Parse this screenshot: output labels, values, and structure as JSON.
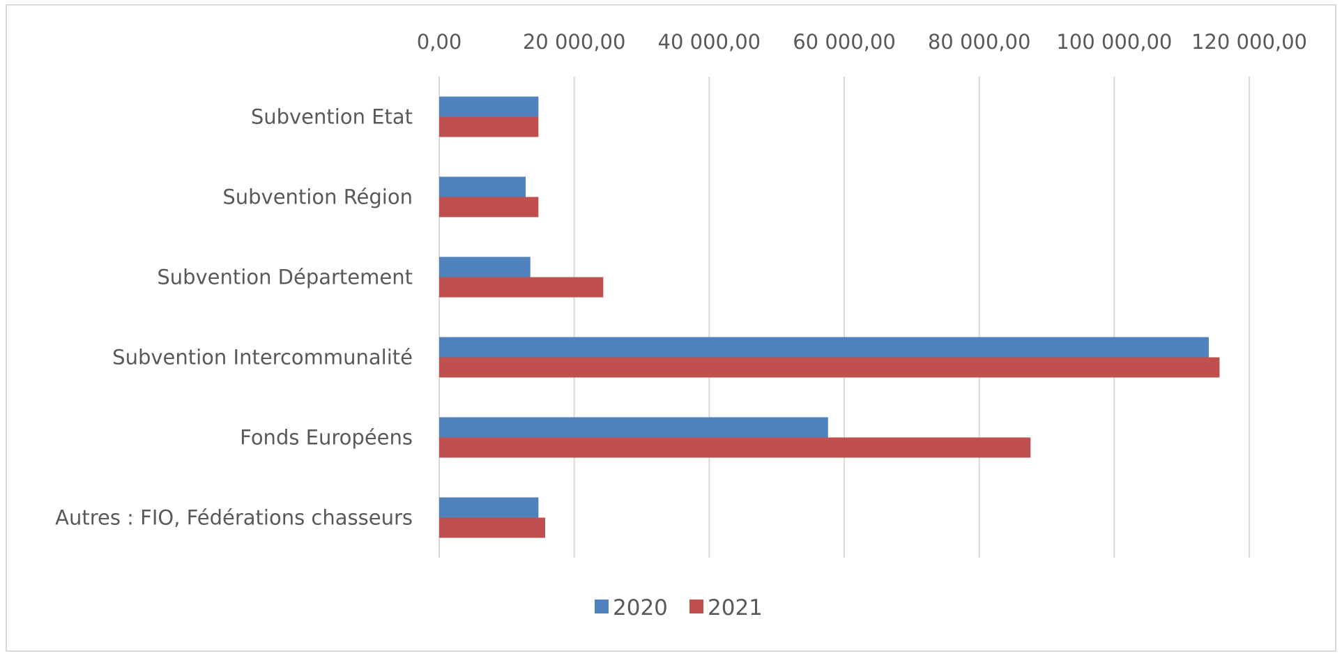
{
  "chart_data": {
    "type": "bar",
    "orientation": "horizontal",
    "title": "",
    "xlabel": "",
    "ylabel": "",
    "xlim": [
      0,
      120000
    ],
    "x_ticks": [
      0,
      20000,
      40000,
      60000,
      80000,
      100000,
      120000
    ],
    "x_tick_labels": [
      "0,00",
      "20 000,00",
      "40 000,00",
      "60 000,00",
      "80 000,00",
      "100 000,00",
      "120 000,00"
    ],
    "x_axis_position": "top",
    "grid": "vertical",
    "legend": "bottom",
    "categories": [
      "Subvention Etat",
      "Subvention Région",
      "Subvention Département",
      "Subvention Intercommunalité",
      "Fonds Européens",
      "Autres : FIO, Fédérations chasseurs"
    ],
    "series": [
      {
        "name": "2020",
        "color": "#4f81bd",
        "values": [
          14700,
          12800,
          13500,
          114000,
          57600,
          14700
        ]
      },
      {
        "name": "2021",
        "color": "#c0504d",
        "values": [
          14700,
          14700,
          24300,
          115600,
          87600,
          15700
        ]
      }
    ]
  }
}
